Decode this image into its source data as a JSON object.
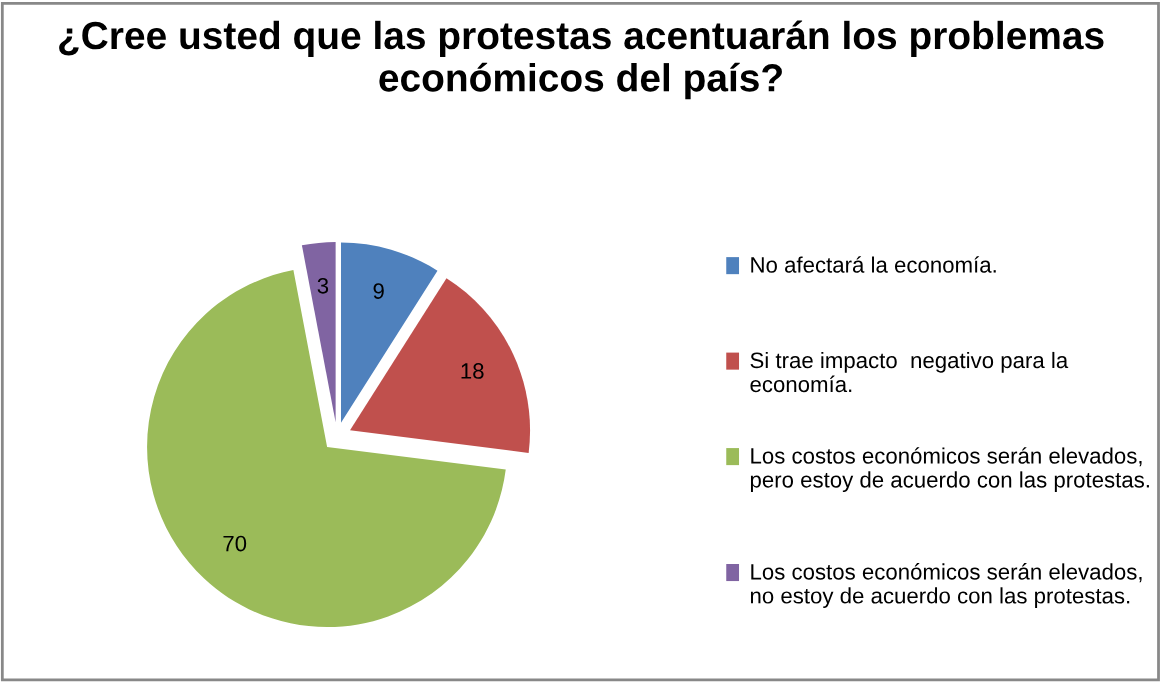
{
  "chart_data": {
    "type": "pie",
    "title": "¿Cree usted que las protestas acentuarán los problemas económicos del país?",
    "categories": [
      "No afectará la economía.",
      "Si trae impacto  negativo para la economía.",
      "Los costos económicos serán elevados, pero estoy de acuerdo con las protestas.",
      "Los costos económicos serán elevados, no estoy de acuerdo con las protestas."
    ],
    "values": [
      9,
      18,
      70,
      3
    ],
    "colors": [
      "#4f81bd",
      "#c0504d",
      "#9bbb59",
      "#8064a2"
    ],
    "data_labels": true,
    "legend": "right"
  }
}
